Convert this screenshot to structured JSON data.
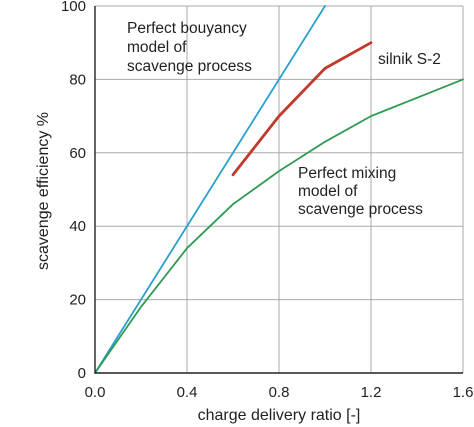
{
  "chart_data": {
    "type": "line",
    "xlabel": "charge delivery ratio [-]",
    "ylabel": "scavenge efficiency %",
    "xlim": [
      0,
      1.6
    ],
    "ylim": [
      0,
      100
    ],
    "x_ticks": [
      0,
      0.4,
      0.8,
      1.2,
      1.6
    ],
    "x_tick_labels": [
      "0.0",
      "0.4",
      "0.8",
      "1.2",
      "1.6"
    ],
    "y_ticks": [
      0,
      20,
      40,
      60,
      80,
      100
    ],
    "y_tick_labels": [
      "0",
      "20",
      "40",
      "60",
      "80",
      "100"
    ],
    "grid": true,
    "series": [
      {
        "key": "bouyancy",
        "color": "#2aa0cf",
        "x": [
          0,
          1.0
        ],
        "y": [
          0,
          100
        ]
      },
      {
        "key": "silnik",
        "color": "#c0392b",
        "x": [
          0.6,
          0.8,
          1.0,
          1.2
        ],
        "y": [
          54,
          70,
          83,
          90
        ]
      },
      {
        "key": "mixing",
        "color": "#2e9a52",
        "x": [
          0,
          0.2,
          0.4,
          0.6,
          0.8,
          1.0,
          1.2,
          1.4,
          1.6
        ],
        "y": [
          0,
          18,
          34,
          46,
          55,
          63,
          70,
          75,
          80
        ]
      }
    ],
    "annotations": [
      {
        "key": "bouyancy",
        "lines": [
          "Perfect bouyancy",
          "model of",
          "scavenge process"
        ]
      },
      {
        "key": "silnik",
        "lines": [
          "silnik S-2"
        ]
      },
      {
        "key": "mixing",
        "lines": [
          "Perfect mixing",
          "model of",
          "scavenge process"
        ]
      }
    ]
  }
}
